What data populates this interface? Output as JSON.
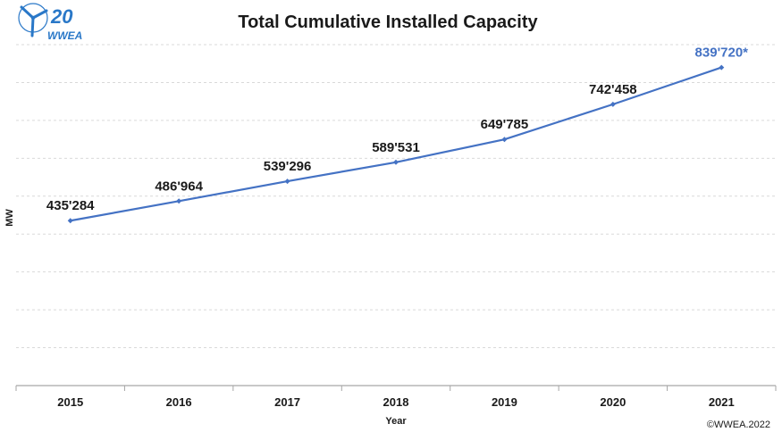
{
  "logo": {
    "number": "20",
    "text": "WWEA"
  },
  "copyright": "©WWEA.2022",
  "chart_data": {
    "type": "line",
    "title": "Total Cumulative Installed Capacity",
    "xlabel": "Year",
    "ylabel": "MW",
    "categories": [
      "2015",
      "2016",
      "2017",
      "2018",
      "2019",
      "2020",
      "2021"
    ],
    "series": [
      {
        "values": [
          435284,
          486964,
          539296,
          589531,
          649785,
          742458,
          839720
        ],
        "labels": [
          "435'284",
          "486'964",
          "539'296",
          "589'531",
          "649'785",
          "742'458",
          "839'720*"
        ],
        "color": "#4472c4",
        "highlight_color": "#4472c4",
        "highlight_index": 6
      }
    ],
    "ylim": [
      0,
      900000
    ],
    "grid": true,
    "grid_style": "dashed",
    "legend": false
  }
}
